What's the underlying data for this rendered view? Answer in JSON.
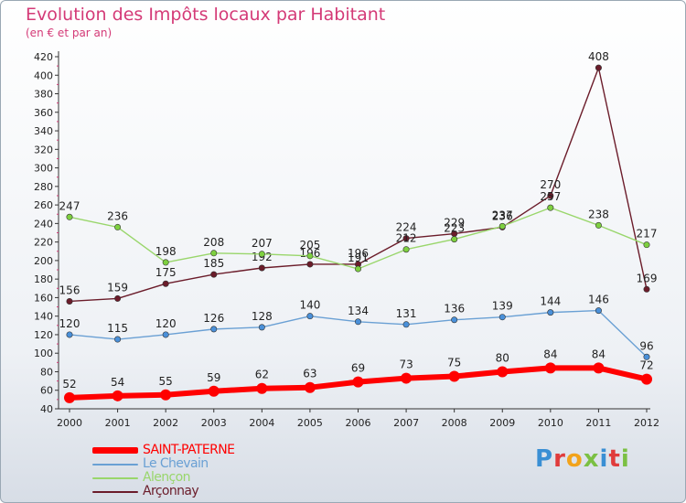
{
  "title": "Evolution des Impôts locaux par Habitant",
  "subtitle": "(en € et par an)",
  "logo": {
    "text": "Proxiti",
    "colors": [
      "#3a8fd4",
      "#e03c3c",
      "#f2a31b",
      "#7bc043",
      "#3a8fd4",
      "#e03c3c",
      "#7bc043"
    ]
  },
  "chart_data": {
    "type": "line",
    "title": "Evolution des Impôts locaux par Habitant",
    "subtitle": "(en € et par an)",
    "x": [
      "2000",
      "2001",
      "2002",
      "2003",
      "2004",
      "2005",
      "2006",
      "2007",
      "2008",
      "2009",
      "2010",
      "2011",
      "2012"
    ],
    "ylim": [
      40,
      420
    ],
    "yticks": [
      40,
      60,
      80,
      100,
      120,
      140,
      160,
      180,
      200,
      220,
      240,
      260,
      280,
      300,
      320,
      340,
      360,
      380,
      400,
      420
    ],
    "grid": false,
    "legend_position": "bottom-left",
    "series": [
      {
        "name": "Arçonnay",
        "color": "#6b1c2a",
        "marker": "#6b1c2a",
        "values": [
          156,
          159,
          175,
          185,
          192,
          196,
          196,
          224,
          229,
          236,
          270,
          408,
          169
        ],
        "labels": [
          "156",
          "159",
          "175",
          "185",
          "192",
          "196",
          "196",
          "224",
          "229",
          "236",
          "270",
          "408",
          "169"
        ]
      },
      {
        "name": "Alençon",
        "color": "#99d66b",
        "marker": "#7ed040",
        "values": [
          247,
          236,
          198,
          208,
          207,
          205,
          191,
          212,
          223,
          237,
          257,
          238,
          217
        ],
        "labels": [
          "247",
          "236",
          "198",
          "208",
          "207",
          "205",
          "191",
          "212",
          "223",
          "237",
          "257",
          "238",
          "217"
        ]
      },
      {
        "name": "Le Chevain",
        "color": "#6aa0d4",
        "marker": "#4a90d9",
        "values": [
          120,
          115,
          120,
          126,
          128,
          140,
          134,
          131,
          136,
          139,
          144,
          146,
          96
        ],
        "labels": [
          "120",
          "115",
          "120",
          "126",
          "128",
          "140",
          "134",
          "131",
          "136",
          "139",
          "144",
          "146",
          "96"
        ]
      },
      {
        "name": "SAINT-PATERNE",
        "color": "#ff0000",
        "marker": "#ff0000",
        "values": [
          52,
          54,
          55,
          59,
          62,
          63,
          69,
          73,
          75,
          80,
          84,
          84,
          72
        ],
        "labels": [
          "52",
          "54",
          "55",
          "59",
          "62",
          "63",
          "69",
          "73",
          "75",
          "80",
          "84",
          "84",
          "72"
        ]
      }
    ]
  },
  "legend": [
    {
      "label": "SAINT-PATERNE",
      "color": "#ff0000"
    },
    {
      "label": "Le Chevain",
      "color": "#6aa0d4"
    },
    {
      "label": "Alençon",
      "color": "#99d66b"
    },
    {
      "label": "Arçonnay",
      "color": "#6b1c2a"
    }
  ]
}
